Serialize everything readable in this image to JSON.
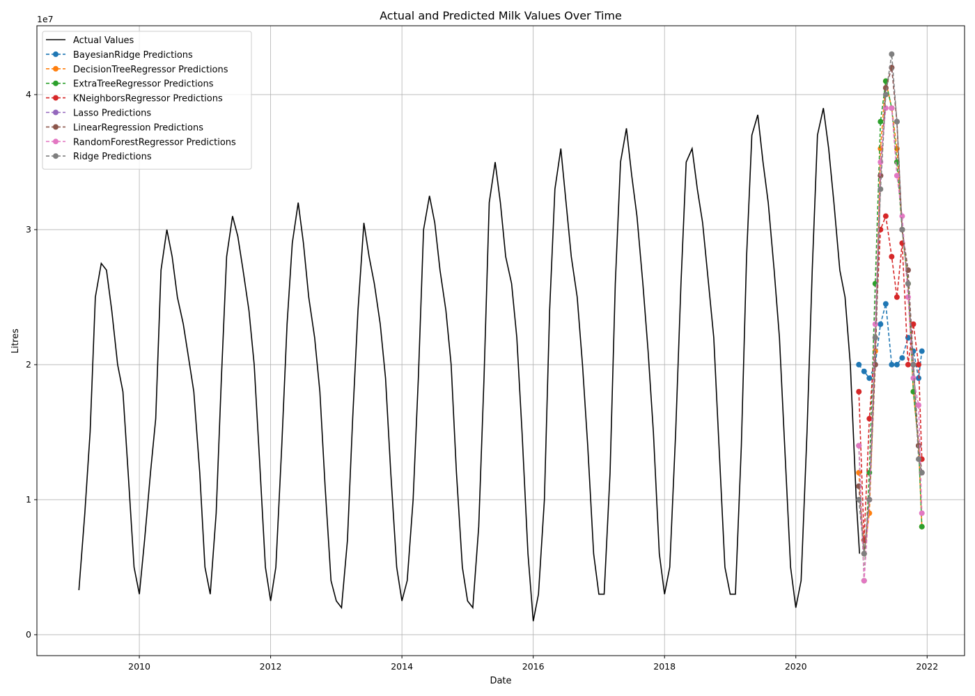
{
  "chart_data": {
    "type": "line",
    "title": "Actual and Predicted Milk Values Over Time",
    "x_label": "Date",
    "y_label": "Litres",
    "y_offset_label": "1e7",
    "xlim": [
      2008.44,
      2022.57
    ],
    "xticks": [
      2010,
      2012,
      2014,
      2016,
      2018,
      2020,
      2022
    ],
    "ylim": [
      -0.155,
      4.51
    ],
    "yticks": [
      0,
      1,
      2,
      3,
      4
    ],
    "grid": true,
    "legend": "upper left",
    "series": [
      {
        "name": "Actual Values",
        "color": "#000000",
        "linestyle": "solid",
        "x": [
          2009.08,
          2009.17,
          2009.25,
          2009.33,
          2009.42,
          2009.5,
          2009.58,
          2009.67,
          2009.75,
          2009.83,
          2009.92,
          2010.0,
          2010.08,
          2010.17,
          2010.25,
          2010.33,
          2010.42,
          2010.5,
          2010.58,
          2010.67,
          2010.75,
          2010.83,
          2010.92,
          2011.0,
          2011.08,
          2011.17,
          2011.25,
          2011.33,
          2011.42,
          2011.5,
          2011.58,
          2011.67,
          2011.75,
          2011.83,
          2011.92,
          2012.0,
          2012.08,
          2012.17,
          2012.25,
          2012.33,
          2012.42,
          2012.5,
          2012.58,
          2012.67,
          2012.75,
          2012.83,
          2012.92,
          2013.0,
          2013.08,
          2013.17,
          2013.25,
          2013.33,
          2013.42,
          2013.5,
          2013.58,
          2013.67,
          2013.75,
          2013.83,
          2013.92,
          2014.0,
          2014.08,
          2014.17,
          2014.25,
          2014.33,
          2014.42,
          2014.5,
          2014.58,
          2014.67,
          2014.75,
          2014.83,
          2014.92,
          2015.0,
          2015.08,
          2015.17,
          2015.25,
          2015.33,
          2015.42,
          2015.5,
          2015.58,
          2015.67,
          2015.75,
          2015.83,
          2015.92,
          2016.0,
          2016.08,
          2016.17,
          2016.25,
          2016.33,
          2016.42,
          2016.5,
          2016.58,
          2016.67,
          2016.75,
          2016.83,
          2016.92,
          2017.0,
          2017.08,
          2017.17,
          2017.25,
          2017.33,
          2017.42,
          2017.5,
          2017.58,
          2017.67,
          2017.75,
          2017.83,
          2017.92,
          2018.0,
          2018.08,
          2018.17,
          2018.25,
          2018.33,
          2018.42,
          2018.5,
          2018.58,
          2018.67,
          2018.75,
          2018.83,
          2018.92,
          2019.0,
          2019.08,
          2019.17,
          2019.25,
          2019.33,
          2019.42,
          2019.5,
          2019.58,
          2019.67,
          2019.75,
          2019.83,
          2019.92,
          2020.0,
          2020.08,
          2020.17,
          2020.25,
          2020.33,
          2020.42,
          2020.5,
          2020.58,
          2020.67,
          2020.75,
          2020.83,
          2020.92,
          2020.97
        ],
        "values": [
          0.33,
          0.9,
          1.5,
          2.5,
          2.75,
          2.7,
          2.4,
          2.0,
          1.8,
          1.2,
          0.5,
          0.3,
          0.7,
          1.2,
          1.6,
          2.7,
          3.0,
          2.8,
          2.5,
          2.3,
          2.05,
          1.8,
          1.2,
          0.5,
          0.3,
          0.9,
          1.9,
          2.8,
          3.1,
          2.95,
          2.7,
          2.4,
          2.0,
          1.3,
          0.5,
          0.25,
          0.5,
          1.4,
          2.3,
          2.9,
          3.2,
          2.9,
          2.5,
          2.2,
          1.8,
          1.1,
          0.4,
          0.25,
          0.2,
          0.7,
          1.6,
          2.4,
          3.05,
          2.8,
          2.6,
          2.3,
          1.9,
          1.2,
          0.5,
          0.25,
          0.4,
          1.0,
          1.9,
          3.0,
          3.25,
          3.05,
          2.7,
          2.4,
          2.0,
          1.2,
          0.5,
          0.25,
          0.2,
          0.8,
          1.9,
          3.2,
          3.5,
          3.2,
          2.8,
          2.6,
          2.2,
          1.5,
          0.6,
          0.1,
          0.3,
          1.0,
          2.4,
          3.3,
          3.6,
          3.2,
          2.8,
          2.5,
          2.0,
          1.4,
          0.6,
          0.3,
          0.3,
          1.2,
          2.6,
          3.5,
          3.75,
          3.4,
          3.1,
          2.6,
          2.1,
          1.5,
          0.6,
          0.3,
          0.5,
          1.5,
          2.6,
          3.5,
          3.6,
          3.3,
          3.05,
          2.6,
          2.2,
          1.4,
          0.5,
          0.3,
          0.3,
          1.4,
          2.8,
          3.7,
          3.85,
          3.5,
          3.2,
          2.7,
          2.2,
          1.4,
          0.5,
          0.2,
          0.4,
          1.5,
          2.7,
          3.7,
          3.9,
          3.6,
          3.2,
          2.7,
          2.5,
          2.0,
          1.0,
          0.6
        ]
      },
      {
        "name": "BayesianRidge Predictions",
        "color": "#1f77b4",
        "linestyle": "dashed",
        "marker": "o",
        "x": [
          2020.96,
          2021.04,
          2021.12,
          2021.21,
          2021.29,
          2021.37,
          2021.46,
          2021.54,
          2021.62,
          2021.71,
          2021.79,
          2021.87,
          2021.92
        ],
        "values": [
          2.0,
          1.95,
          1.9,
          2.0,
          2.3,
          2.45,
          2.0,
          2.0,
          2.05,
          2.2,
          2.1,
          1.9,
          2.1
        ]
      },
      {
        "name": "DecisionTreeRegressor Predictions",
        "color": "#ff7f0e",
        "linestyle": "dashed",
        "marker": "o",
        "x": [
          2020.96,
          2021.04,
          2021.12,
          2021.21,
          2021.29,
          2021.37,
          2021.46,
          2021.54,
          2021.62,
          2021.71,
          2021.79,
          2021.87,
          2021.92
        ],
        "values": [
          1.2,
          0.6,
          0.9,
          2.1,
          3.6,
          4.1,
          3.9,
          3.6,
          3.0,
          2.6,
          1.8,
          1.4,
          0.8
        ]
      },
      {
        "name": "ExtraTreeRegressor Predictions",
        "color": "#2ca02c",
        "linestyle": "dashed",
        "marker": "o",
        "x": [
          2020.96,
          2021.04,
          2021.12,
          2021.21,
          2021.29,
          2021.37,
          2021.46,
          2021.54,
          2021.62,
          2021.71,
          2021.79,
          2021.87,
          2021.92
        ],
        "values": [
          1.4,
          0.4,
          1.2,
          2.6,
          3.8,
          4.1,
          3.9,
          3.5,
          3.0,
          2.6,
          1.8,
          1.4,
          0.8
        ]
      },
      {
        "name": "KNeighborsRegressor Predictions",
        "color": "#d62728",
        "linestyle": "dashed",
        "marker": "o",
        "x": [
          2020.96,
          2021.04,
          2021.12,
          2021.21,
          2021.29,
          2021.37,
          2021.46,
          2021.54,
          2021.62,
          2021.71,
          2021.79,
          2021.87,
          2021.92
        ],
        "values": [
          1.8,
          0.7,
          1.6,
          2.2,
          3.0,
          3.1,
          2.8,
          2.5,
          2.9,
          2.0,
          2.3,
          2.0,
          1.3
        ]
      },
      {
        "name": "Lasso Predictions",
        "color": "#9467bd",
        "linestyle": "dashed",
        "marker": "o",
        "x": [
          2020.96,
          2021.04,
          2021.12,
          2021.21,
          2021.29,
          2021.37,
          2021.46,
          2021.54,
          2021.62,
          2021.71,
          2021.79,
          2021.87,
          2021.92
        ],
        "values": [
          1.1,
          0.6,
          1.0,
          2.0,
          3.4,
          4.05,
          4.2,
          3.8,
          3.0,
          2.7,
          2.0,
          1.4,
          1.2
        ]
      },
      {
        "name": "LinearRegression Predictions",
        "color": "#8c564b",
        "linestyle": "dashed",
        "marker": "o",
        "x": [
          2020.96,
          2021.04,
          2021.12,
          2021.21,
          2021.29,
          2021.37,
          2021.46,
          2021.54,
          2021.62,
          2021.71,
          2021.79,
          2021.87,
          2021.92
        ],
        "values": [
          1.1,
          0.6,
          1.0,
          2.0,
          3.4,
          4.05,
          4.2,
          3.8,
          3.0,
          2.7,
          2.0,
          1.4,
          1.2
        ]
      },
      {
        "name": "RandomForestRegressor Predictions",
        "color": "#e377c2",
        "linestyle": "dashed",
        "marker": "o",
        "x": [
          2020.96,
          2021.04,
          2021.12,
          2021.21,
          2021.29,
          2021.37,
          2021.46,
          2021.54,
          2021.62,
          2021.71,
          2021.79,
          2021.87,
          2021.92
        ],
        "values": [
          1.4,
          0.4,
          1.0,
          2.3,
          3.5,
          3.9,
          3.9,
          3.4,
          3.1,
          2.5,
          1.9,
          1.7,
          0.9
        ]
      },
      {
        "name": "Ridge Predictions",
        "color": "#7f7f7f",
        "linestyle": "dashed",
        "marker": "o",
        "x": [
          2020.96,
          2021.04,
          2021.12,
          2021.21,
          2021.29,
          2021.37,
          2021.46,
          2021.54,
          2021.62,
          2021.71,
          2021.79,
          2021.87,
          2021.92
        ],
        "values": [
          1.0,
          0.6,
          1.0,
          2.2,
          3.3,
          4.0,
          4.3,
          3.8,
          3.0,
          2.6,
          2.0,
          1.3,
          1.2
        ]
      }
    ]
  }
}
